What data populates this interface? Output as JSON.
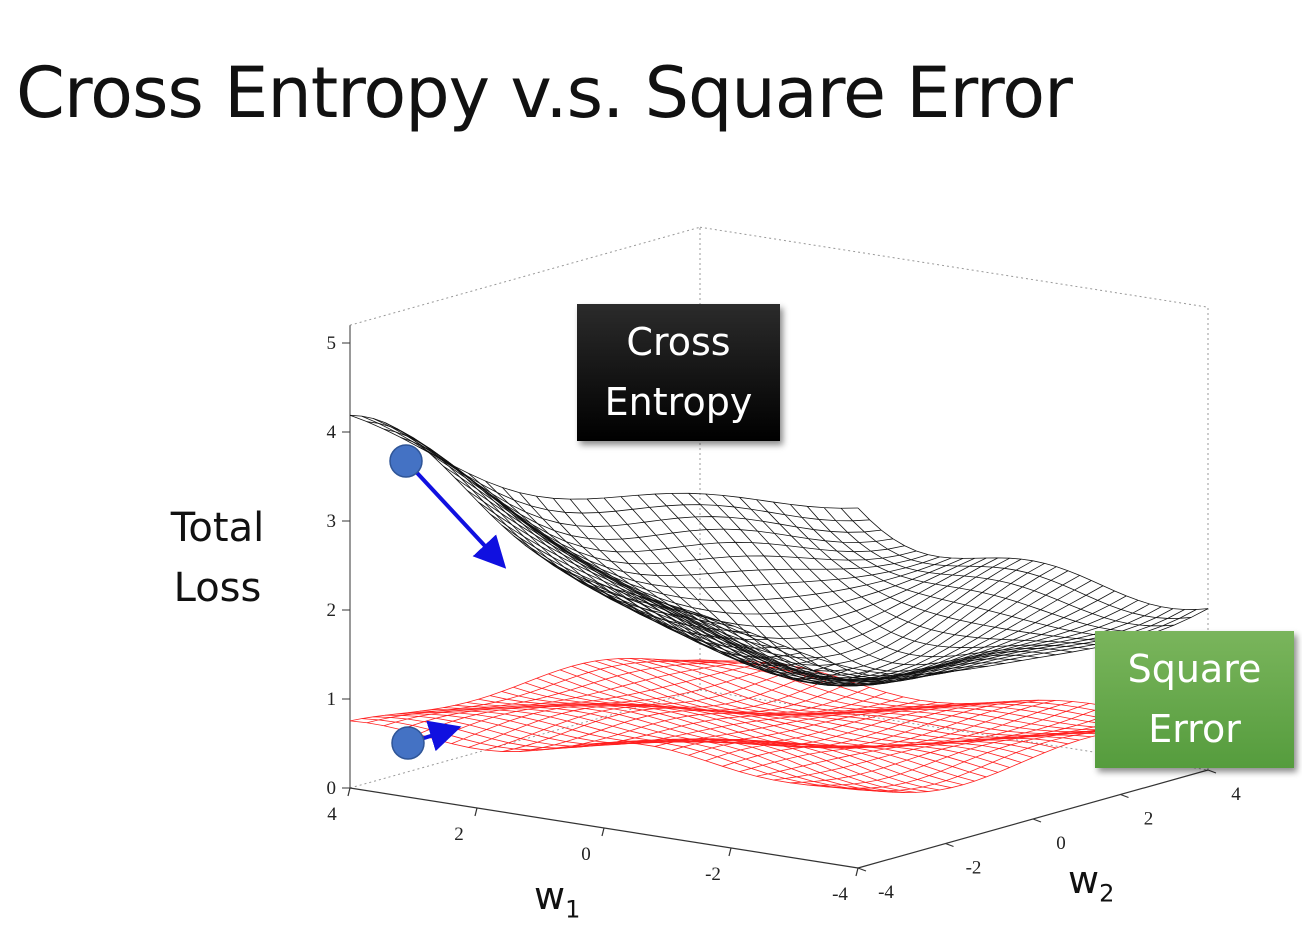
{
  "slide": {
    "title": "Cross Entropy v.s. Square Error",
    "y_axis_label_line1": "Total",
    "y_axis_label_line2": "Loss",
    "x_axis_variable": "w",
    "x_axis_subscript": "1",
    "depth_axis_variable": "w",
    "depth_axis_subscript": "2",
    "callouts": {
      "cross_entropy_line1": "Cross",
      "cross_entropy_line2": "Entropy",
      "square_error_line1": "Square",
      "square_error_line2": "Error"
    }
  },
  "chart_data": {
    "type": "surface",
    "z_ticks": [
      "0",
      "1",
      "2",
      "3",
      "4",
      "5"
    ],
    "w1_ticks": [
      "4",
      "2",
      "0",
      "-2",
      "-4"
    ],
    "w2_ticks": [
      "-4",
      "-2",
      "0",
      "2",
      "4"
    ],
    "series": [
      {
        "name": "Cross Entropy",
        "color": "#000000"
      },
      {
        "name": "Square Error",
        "color": "#ff0000"
      }
    ],
    "markers": [
      {
        "surface": "Cross Entropy",
        "color": "#4472c4",
        "arrow_color": "#1010e0"
      },
      {
        "surface": "Square Error",
        "color": "#4472c4",
        "arrow_color": "#1010e0"
      }
    ]
  }
}
